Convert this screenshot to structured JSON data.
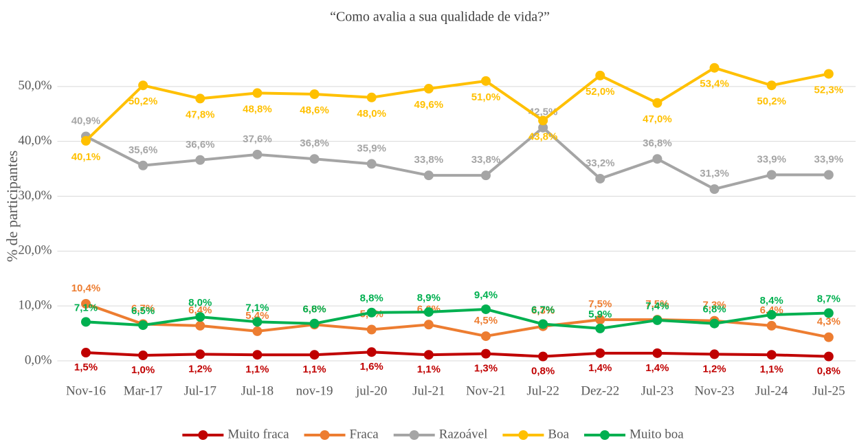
{
  "chart_data": {
    "type": "line",
    "title": "“Como avalia a sua qualidade de vida?”",
    "y_label": "% de participantes",
    "categories": [
      "Nov-16",
      "Mar-17",
      "Jul-17",
      "Jul-18",
      "nov-19",
      "jul-20",
      "Jul-21",
      "Nov-21",
      "Jul-22",
      "Dez-22",
      "Jul-23",
      "Nov-23",
      "Jul-24",
      "Jul-25"
    ],
    "series": [
      {
        "name": "Muito fraca",
        "color": "#c00000",
        "values": [
          1.5,
          1.0,
          1.2,
          1.1,
          1.1,
          1.6,
          1.1,
          1.3,
          0.8,
          1.4,
          1.4,
          1.2,
          1.1,
          0.8
        ],
        "value_labels": [
          "1,5%",
          "1,0%",
          "1,2%",
          "1,1%",
          "1,1%",
          "1,6%",
          "1,1%",
          "1,3%",
          "0,8%",
          "1,4%",
          "1,4%",
          "1,2%",
          "1,1%",
          "0,8%"
        ]
      },
      {
        "name": "Fraca",
        "color": "#ed7d31",
        "values": [
          10.4,
          6.7,
          6.4,
          5.4,
          6.6,
          5.7,
          6.6,
          4.5,
          6.3,
          7.5,
          7.5,
          7.3,
          6.4,
          4.3
        ],
        "value_labels": [
          "10,4%",
          "6,7%",
          "6,4%",
          "5,4%",
          "6,6%",
          "5,7%",
          "6,6%",
          "4,5%",
          "6,3%",
          "7,5%",
          "7,5%",
          "7,3%",
          "6,4%",
          "4,3%"
        ]
      },
      {
        "name": "Razoável",
        "color": "#a5a5a5",
        "values": [
          40.9,
          35.6,
          36.6,
          37.6,
          36.8,
          35.9,
          33.8,
          33.8,
          42.5,
          33.2,
          36.8,
          31.3,
          33.9,
          33.9
        ],
        "value_labels": [
          "40,9%",
          "35,6%",
          "36,6%",
          "37,6%",
          "36,8%",
          "35,9%",
          "33,8%",
          "33,8%",
          "42,5%",
          "33,2%",
          "36,8%",
          "31,3%",
          "33,9%",
          "33,9%"
        ]
      },
      {
        "name": "Boa",
        "color": "#ffc000",
        "values": [
          40.1,
          50.2,
          47.8,
          48.8,
          48.6,
          48.0,
          49.6,
          51.0,
          43.8,
          52.0,
          47.0,
          53.4,
          50.2,
          52.3
        ],
        "value_labels": [
          "40,1%",
          "50,2%",
          "47,8%",
          "48,8%",
          "48,6%",
          "48,0%",
          "49,6%",
          "51,0%",
          "43,8%",
          "52,0%",
          "47,0%",
          "53,4%",
          "50,2%",
          "52,3%"
        ]
      },
      {
        "name": "Muito boa",
        "color": "#00b050",
        "values": [
          7.1,
          6.5,
          8.0,
          7.1,
          6.8,
          8.8,
          8.9,
          9.4,
          6.7,
          5.9,
          7.4,
          6.8,
          8.4,
          8.7
        ],
        "value_labels": [
          "7,1%",
          "6,5%",
          "8,0%",
          "7,1%",
          "6,8%",
          "8,8%",
          "8,9%",
          "9,4%",
          "6,7%",
          "5,9%",
          "7,4%",
          "6,8%",
          "8,4%",
          "8,7%"
        ]
      }
    ],
    "ylim": [
      0,
      60
    ],
    "yticks": [
      {
        "value": 0,
        "label": "0,0%"
      },
      {
        "value": 10,
        "label": "10,0%"
      },
      {
        "value": 20,
        "label": "20,0%"
      },
      {
        "value": 30,
        "label": "30,0%"
      },
      {
        "value": 40,
        "label": "40,0%"
      },
      {
        "value": 50,
        "label": "50,0%"
      }
    ],
    "grid": true,
    "legend": "bottom"
  }
}
